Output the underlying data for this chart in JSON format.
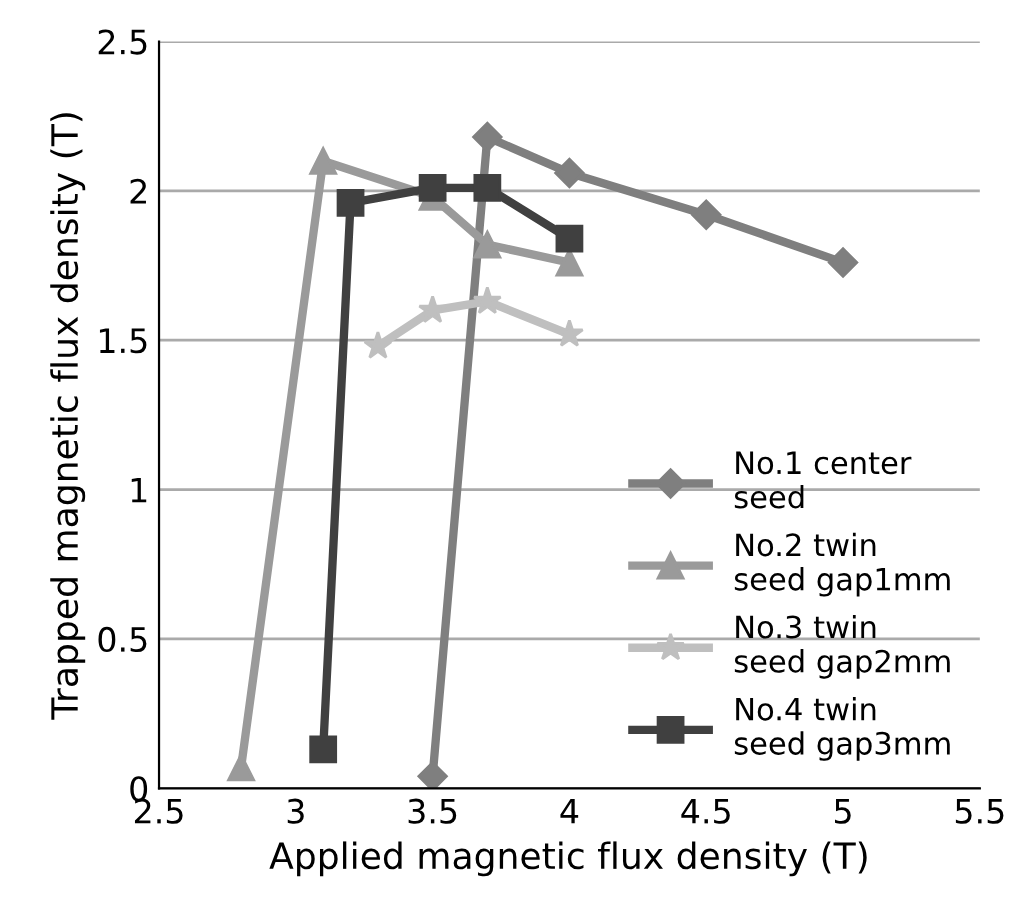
{
  "chart_data": {
    "type": "line",
    "xlabel": "Applied magnetic flux density (T)",
    "ylabel": "Trapped magnetic flux density (T)",
    "xlim": [
      2.5,
      5.5
    ],
    "xticks": [
      2.5,
      3,
      3.5,
      4,
      4.5,
      5,
      5.5
    ],
    "ylim": [
      0,
      2.5
    ],
    "yticks": [
      0,
      0.5,
      1,
      1.5,
      2,
      2.5
    ],
    "grid": "y",
    "legend": "bottom right",
    "series": [
      {
        "name": "No.1 center\nseed",
        "color": "#7f7f7f",
        "marker": "diamond",
        "x": [
          3.5,
          3.7,
          4,
          4.5,
          5
        ],
        "values": [
          0.04,
          2.18,
          2.06,
          1.92,
          1.76
        ]
      },
      {
        "name": "No.2 twin\nseed gap1mm",
        "color": "#9a9a9a",
        "marker": "triangle",
        "x": [
          2.8,
          3.1,
          3.5,
          3.7,
          4
        ],
        "values": [
          0.07,
          2.1,
          1.98,
          1.82,
          1.76
        ]
      },
      {
        "name": "No.3 twin\nseed gap2mm",
        "color": "#bfbfbf",
        "marker": "star",
        "x": [
          3.3,
          3.5,
          3.7,
          4
        ],
        "values": [
          1.48,
          1.6,
          1.63,
          1.52
        ]
      },
      {
        "name": "No.4 twin\nseed gap3mm",
        "color": "#404040",
        "marker": "square",
        "x": [
          3.1,
          3.2,
          3.5,
          3.7,
          4
        ],
        "values": [
          0.13,
          1.96,
          2.01,
          2.01,
          1.84
        ]
      }
    ]
  }
}
